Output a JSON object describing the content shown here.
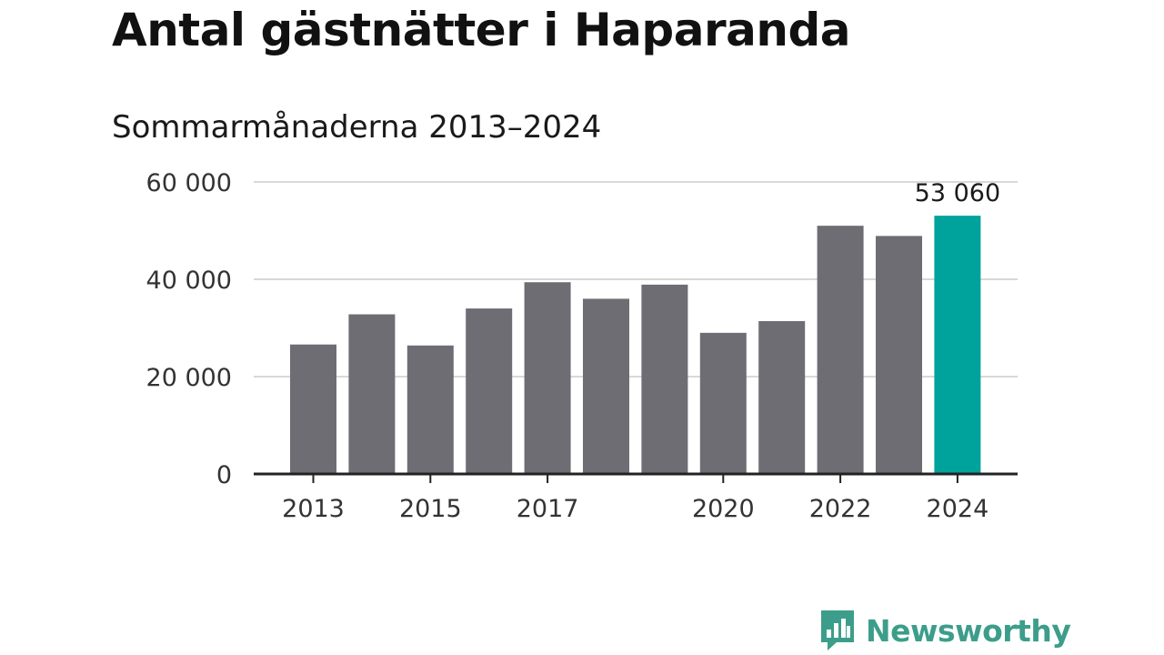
{
  "title": "Antal gästnätter i Haparanda",
  "subtitle": "Sommarmånaderna 2013–2024",
  "colors": {
    "bar": "#6e6d74",
    "highlight": "#00a39b",
    "grid": "#d9d9d9",
    "axis": "#222222",
    "logo": "#3c9e8a"
  },
  "logo": {
    "text": "Newsworthy",
    "icon": "bar-chart-speech-bubble-icon"
  },
  "chart_data": {
    "type": "bar",
    "categories": [
      "2013",
      "2014",
      "2015",
      "2016",
      "2017",
      "2018",
      "2019",
      "2020",
      "2021",
      "2022",
      "2023",
      "2024"
    ],
    "values": [
      26600,
      32800,
      26400,
      34000,
      39400,
      36000,
      38900,
      29000,
      31400,
      51000,
      48900,
      53060
    ],
    "highlight_index": 11,
    "value_label": {
      "index": 11,
      "text": "53 060"
    },
    "xticks": [
      "2013",
      "2015",
      "2017",
      "2020",
      "2022",
      "2024"
    ],
    "yticks": [
      0,
      20000,
      40000,
      60000
    ],
    "ytick_labels": [
      "0",
      "20 000",
      "40 000",
      "60 000"
    ],
    "ylim": [
      0,
      60000
    ],
    "grid": true,
    "xlabel": "",
    "ylabel": ""
  }
}
